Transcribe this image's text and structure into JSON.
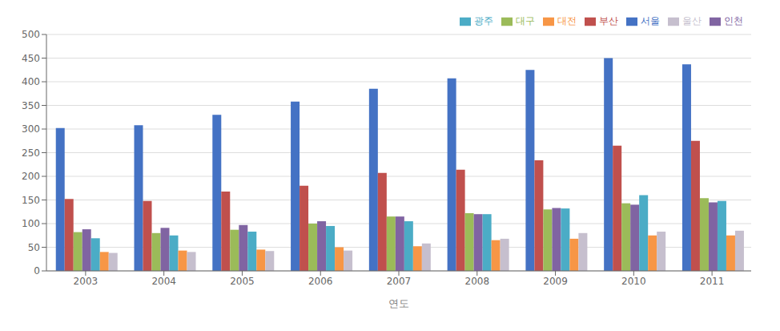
{
  "chart_data": {
    "type": "bar",
    "xlabel": "연도",
    "categories": [
      "2003",
      "2004",
      "2005",
      "2006",
      "2007",
      "2008",
      "2009",
      "2010",
      "2011"
    ],
    "series": [
      {
        "name": "서울",
        "color": "#4472C4",
        "values": [
          302,
          308,
          330,
          358,
          385,
          407,
          425,
          450,
          437
        ]
      },
      {
        "name": "부산",
        "color": "#C0504D",
        "values": [
          152,
          148,
          168,
          180,
          207,
          214,
          234,
          265,
          275
        ]
      },
      {
        "name": "대구",
        "color": "#9BBB59",
        "values": [
          82,
          80,
          87,
          100,
          115,
          122,
          130,
          143,
          154
        ]
      },
      {
        "name": "인천",
        "color": "#8064A2",
        "values": [
          88,
          91,
          97,
          105,
          115,
          120,
          133,
          140,
          145
        ]
      },
      {
        "name": "광주",
        "color": "#4BACC6",
        "values": [
          69,
          75,
          83,
          95,
          105,
          120,
          132,
          160,
          148
        ]
      },
      {
        "name": "대전",
        "color": "#F79646",
        "values": [
          40,
          43,
          45,
          50,
          52,
          65,
          68,
          75,
          75
        ]
      },
      {
        "name": "울산",
        "color": "#C6BFCE",
        "values": [
          38,
          40,
          42,
          43,
          58,
          68,
          80,
          83,
          85
        ]
      }
    ],
    "ylim": [
      0,
      500
    ],
    "yticks": [
      0,
      50,
      100,
      150,
      200,
      250,
      300,
      350,
      400,
      450,
      500
    ],
    "grid": true,
    "legend": "upper right"
  }
}
